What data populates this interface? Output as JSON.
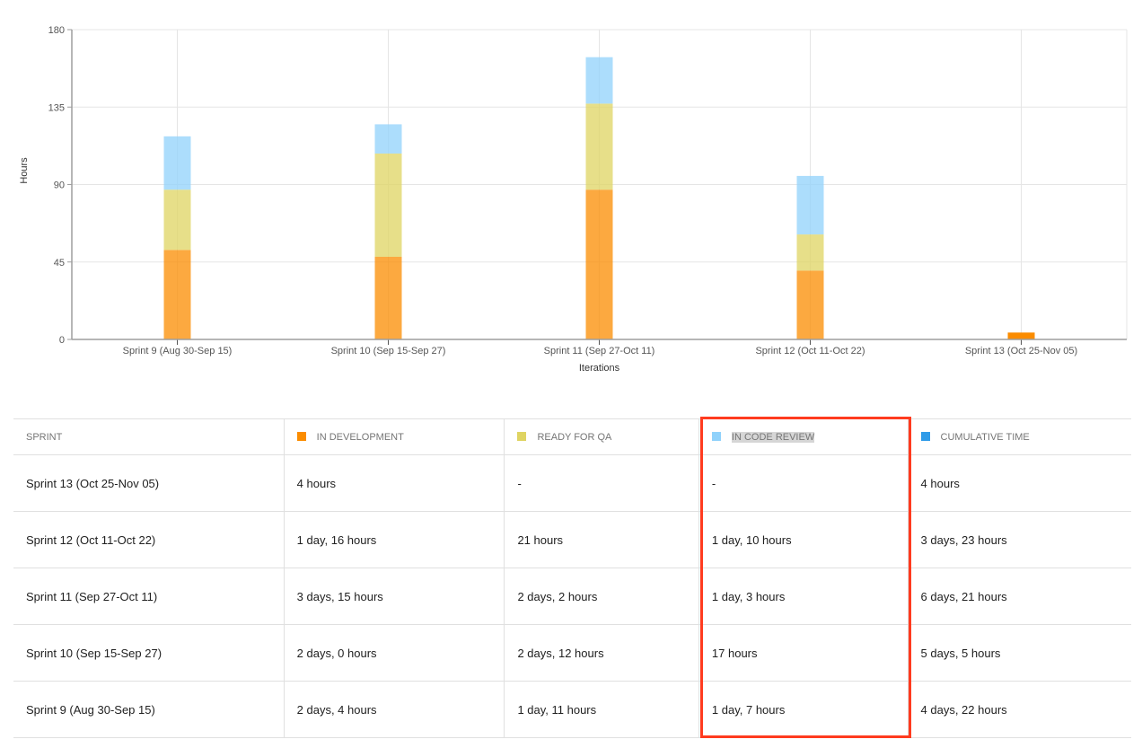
{
  "chart_data": {
    "type": "bar",
    "stacked": true,
    "xlabel": "Iterations",
    "ylabel": "Hours",
    "ylim": [
      0,
      180
    ],
    "yticks": [
      0,
      45,
      90,
      135,
      180
    ],
    "grid": true,
    "categories": [
      "Sprint 9 (Aug 30-Sep 15)",
      "Sprint 10 (Sep 15-Sep 27)",
      "Sprint 11 (Sep 27-Oct 11)",
      "Sprint 12 (Oct 11-Oct 22)",
      "Sprint 13 (Oct 25-Nov 05)"
    ],
    "series": [
      {
        "name": "IN DEVELOPMENT",
        "color": "#fb8c00",
        "values": [
          52,
          48,
          87,
          40,
          4
        ]
      },
      {
        "name": "READY FOR QA",
        "color": "#dfd462",
        "values": [
          35,
          60,
          50,
          21,
          0
        ]
      },
      {
        "name": "IN CODE REVIEW",
        "color": "#90d2fb",
        "values": [
          31,
          17,
          27,
          34,
          0
        ]
      }
    ]
  },
  "table": {
    "headers": [
      {
        "label": "SPRINT"
      },
      {
        "label": "IN DEVELOPMENT",
        "color": "#fb8c00"
      },
      {
        "label": "READY FOR QA",
        "color": "#dfd462"
      },
      {
        "label": "IN CODE REVIEW",
        "color": "#90d2fb"
      },
      {
        "label": "CUMULATIVE TIME",
        "color": "#2f9be8"
      }
    ],
    "rows": [
      [
        "Sprint 13 (Oct 25-Nov 05)",
        "4 hours",
        "-",
        "-",
        "4 hours"
      ],
      [
        "Sprint 12 (Oct 11-Oct 22)",
        "1 day, 16 hours",
        "21 hours",
        "1 day, 10 hours",
        "3 days, 23 hours"
      ],
      [
        "Sprint 11 (Sep 27-Oct 11)",
        "3 days, 15 hours",
        "2 days, 2 hours",
        "1 day, 3 hours",
        "6 days, 21 hours"
      ],
      [
        "Sprint 10 (Sep 15-Sep 27)",
        "2 days, 0 hours",
        "2 days, 12 hours",
        "17 hours",
        "5 days, 5 hours"
      ],
      [
        "Sprint 9 (Aug 30-Sep 15)",
        "2 days, 4 hours",
        "1 day, 11 hours",
        "1 day, 7 hours",
        "4 days, 22 hours"
      ]
    ]
  }
}
